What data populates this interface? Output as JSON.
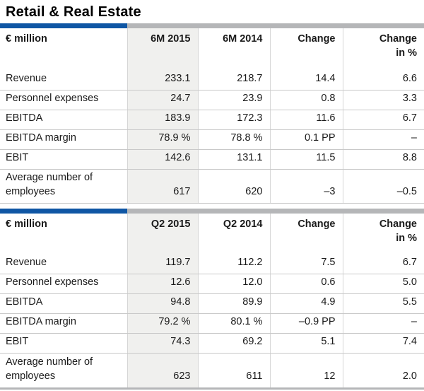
{
  "title": "Retail & Real Estate",
  "colors": {
    "accent_blue": "#0f56a4",
    "bar_gray": "#b5b6b8",
    "column_highlight": "#f0f0ee",
    "row_line": "#c9c9c9"
  },
  "sections": [
    {
      "unit_label": "€ million",
      "col_headers": [
        "6M 2015",
        "6M 2014",
        "Change",
        "Change\nin %"
      ],
      "rows": [
        {
          "label": "Revenue",
          "values": [
            "233.1",
            "218.7",
            "14.4",
            "6.6"
          ]
        },
        {
          "label": "Personnel expenses",
          "values": [
            "24.7",
            "23.9",
            "0.8",
            "3.3"
          ]
        },
        {
          "label": "EBITDA",
          "values": [
            "183.9",
            "172.3",
            "11.6",
            "6.7"
          ]
        },
        {
          "label": "EBITDA margin",
          "values": [
            "78.9 %",
            "78.8 %",
            "0.1 PP",
            "–"
          ]
        },
        {
          "label": "EBIT",
          "values": [
            "142.6",
            "131.1",
            "11.5",
            "8.8"
          ]
        },
        {
          "label": "Average number of employees",
          "values": [
            "617",
            "620",
            "–3",
            "–0.5"
          ]
        }
      ]
    },
    {
      "unit_label": "€ million",
      "col_headers": [
        "Q2 2015",
        "Q2 2014",
        "Change",
        "Change\nin %"
      ],
      "rows": [
        {
          "label": "Revenue",
          "values": [
            "119.7",
            "112.2",
            "7.5",
            "6.7"
          ]
        },
        {
          "label": "Personnel expenses",
          "values": [
            "12.6",
            "12.0",
            "0.6",
            "5.0"
          ]
        },
        {
          "label": "EBITDA",
          "values": [
            "94.8",
            "89.9",
            "4.9",
            "5.5"
          ]
        },
        {
          "label": "EBITDA margin",
          "values": [
            "79.2 %",
            "80.1 %",
            "–0.9 PP",
            "–"
          ]
        },
        {
          "label": "EBIT",
          "values": [
            "74.3",
            "69.2",
            "5.1",
            "7.4"
          ]
        },
        {
          "label": "Average number of employees",
          "values": [
            "623",
            "611",
            "12",
            "2.0"
          ]
        }
      ]
    }
  ]
}
